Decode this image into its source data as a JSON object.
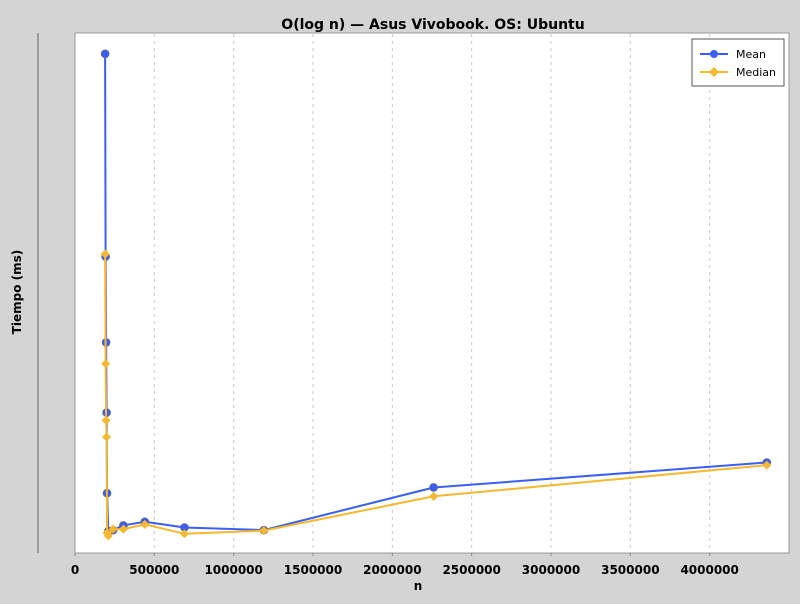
{
  "chart_data": {
    "type": "line",
    "title": "O(log n) — Asus Vivobook. OS: Ubuntu",
    "xlabel": "n",
    "ylabel": "Tiempo (ms)",
    "xlim": [
      0,
      4500000
    ],
    "ylim": [
      0,
      100
    ],
    "x_ticks": [
      0,
      500000,
      1000000,
      1500000,
      2000000,
      2500000,
      3000000,
      3500000,
      4000000
    ],
    "x_tick_labels": [
      "0",
      "500000",
      "1000000",
      "1500000",
      "2000000",
      "2500000",
      "3000000",
      "3500000",
      "4000000"
    ],
    "y_ticks_shown": false,
    "grid": "vertical dashed",
    "legend_position": "top-right",
    "series": [
      {
        "name": "Mean",
        "color": "#3b5ff5",
        "marker": "circle",
        "x": [
          190000,
          193000,
          196000,
          199000,
          202000,
          210000,
          240000,
          305000,
          440000,
          690000,
          1190000,
          2260000,
          4360000
        ],
        "y": [
          96,
          57,
          40.5,
          27,
          11.5,
          4.2,
          4.4,
          5.3,
          6.0,
          4.9,
          4.4,
          12.6,
          17.4
        ]
      },
      {
        "name": "Median",
        "color": "#f5b82e",
        "marker": "diamond",
        "x": [
          190000,
          193000,
          196000,
          199000,
          202000,
          210000,
          240000,
          305000,
          440000,
          690000,
          1190000,
          2260000,
          4360000
        ],
        "y": [
          57.5,
          36.4,
          25.5,
          22.3,
          3.9,
          3.3,
          4.6,
          4.6,
          5.5,
          3.7,
          4.3,
          10.9,
          16.9
        ]
      }
    ]
  }
}
